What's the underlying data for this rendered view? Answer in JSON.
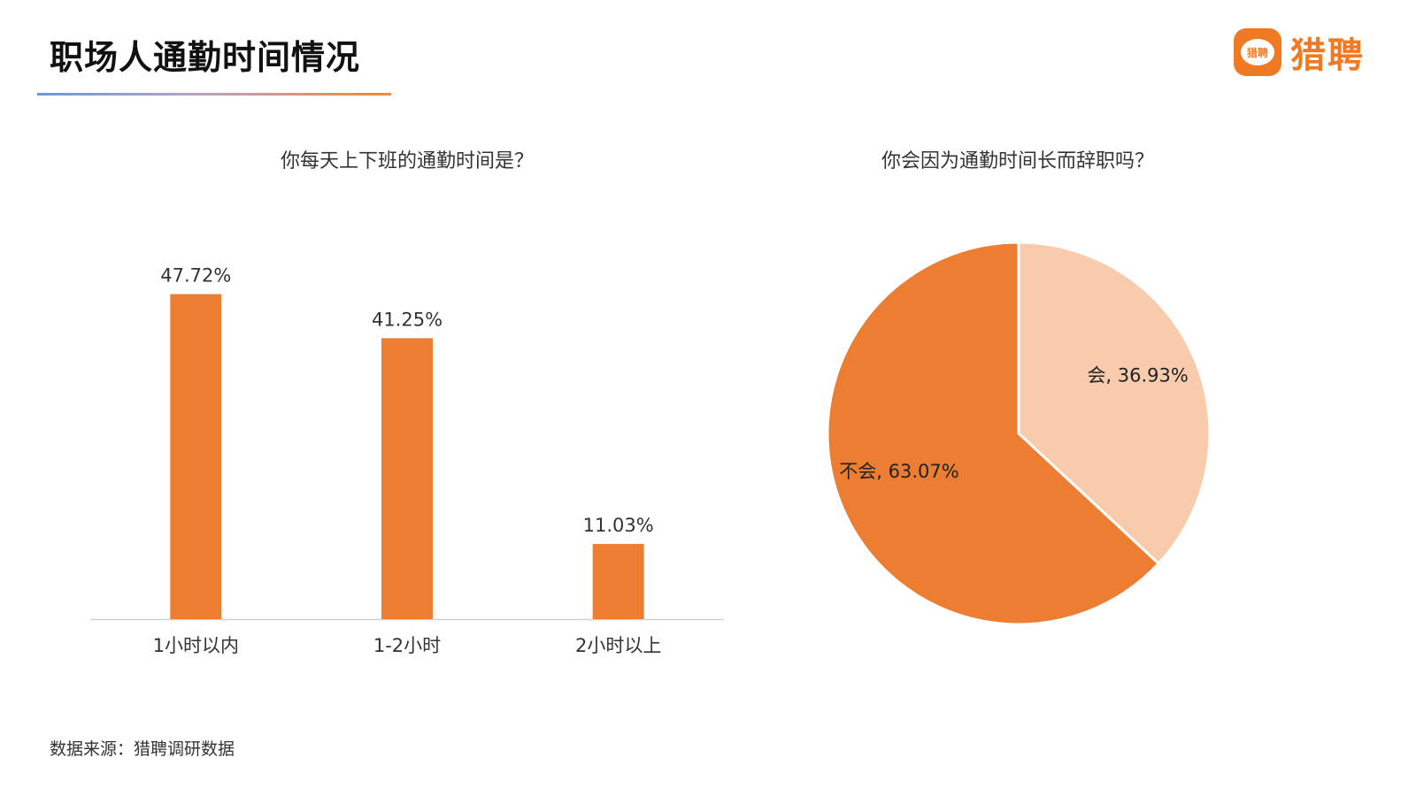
{
  "header": {
    "title": "职场人通勤时间情况",
    "logo_badge": "猎聘",
    "logo_text": "猎聘",
    "brand_color": "#f07a24"
  },
  "source_note": "数据来源：猎聘调研数据",
  "chart_data": [
    {
      "type": "bar",
      "title": "你每天上下班的通勤时间是？",
      "categories": [
        "1小时以内",
        "1-2小时",
        "2小时以上"
      ],
      "values": [
        47.72,
        41.25,
        11.03
      ],
      "data_labels": [
        "47.72%",
        "41.25%",
        "11.03%"
      ],
      "unit": "%",
      "ylim": [
        0,
        50
      ],
      "grid": false,
      "color": "#ed7d31"
    },
    {
      "type": "pie",
      "title": "你会因为通勤时间长而辞职吗？",
      "slices": [
        {
          "label": "会",
          "value": 36.93,
          "data_label": "会, 36.93%",
          "color": "#f8cbad"
        },
        {
          "label": "不会",
          "value": 63.07,
          "data_label": "不会, 63.07%",
          "color": "#ed7d31"
        }
      ]
    }
  ]
}
